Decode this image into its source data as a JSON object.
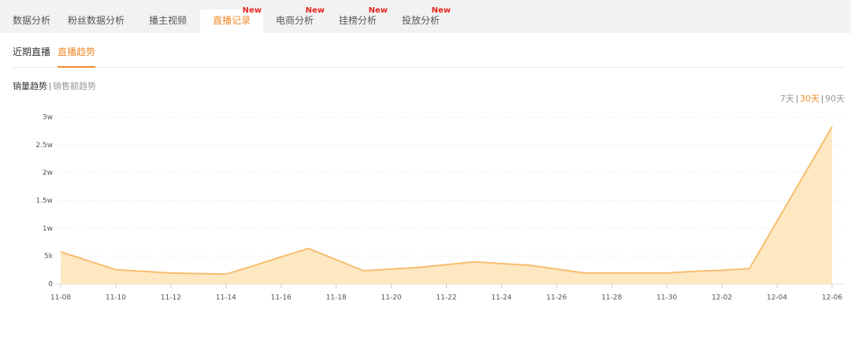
{
  "tabs": {
    "items": [
      {
        "label": "数据分析"
      },
      {
        "label": "粉丝数据分析"
      },
      {
        "label": "播主视频"
      },
      {
        "label": "直播记录",
        "badge": "New"
      },
      {
        "label": "电商分析",
        "badge": "New"
      },
      {
        "label": "挂榜分析",
        "badge": "New"
      },
      {
        "label": "投放分析",
        "badge": "New"
      }
    ],
    "active_index": 3
  },
  "subtabs": {
    "items": [
      "近期直播",
      "直播趋势"
    ],
    "active_index": 1
  },
  "metric_switch": {
    "items": [
      "销量趋势",
      "销售额趋势"
    ],
    "active_index": 0
  },
  "range_switch": {
    "items": [
      "7天",
      "30天",
      "90天"
    ],
    "active_index": 1
  },
  "chart_data": {
    "type": "area",
    "categories": [
      "11-08",
      null,
      "11-10",
      null,
      "11-12",
      null,
      "11-14",
      null,
      "11-16",
      null,
      "11-18",
      null,
      "11-20",
      null,
      "11-22",
      null,
      "11-24",
      null,
      "11-26",
      null,
      "11-28",
      null,
      "11-30",
      null,
      "12-02",
      null,
      "12-04",
      null,
      "12-06"
    ],
    "series": [
      {
        "name": "销量",
        "color": "#f7be6e",
        "values": [
          5800,
          4200,
          2600,
          2300,
          2000,
          1900,
          1800,
          3300,
          4900,
          6400,
          4400,
          2400,
          2700,
          3000,
          3500,
          4000,
          3700,
          3400,
          2700,
          2000,
          2000,
          2000,
          2000,
          2300,
          2500,
          2800,
          11300,
          19800,
          28300
        ]
      }
    ],
    "fill_color": "#fde8c2",
    "ylim": [
      0,
      30000
    ],
    "yticks": [
      0,
      {
        "value": 5000,
        "label": "5k"
      },
      {
        "value": 10000,
        "label": "1w"
      },
      {
        "value": 15000,
        "label": "1.5w"
      },
      {
        "value": 20000,
        "label": "2w"
      },
      {
        "value": 25000,
        "label": "2.5w"
      },
      {
        "value": 30000,
        "label": "3w"
      }
    ],
    "grid": true
  }
}
